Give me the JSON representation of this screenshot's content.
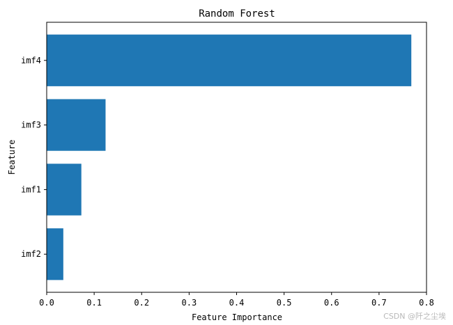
{
  "chart_data": {
    "type": "bar",
    "orientation": "horizontal",
    "title": "Random Forest",
    "xlabel": "Feature Importance",
    "ylabel": "Feature",
    "categories": [
      "imf2",
      "imf1",
      "imf3",
      "imf4"
    ],
    "values": [
      0.035,
      0.073,
      0.124,
      0.768
    ],
    "xlim": [
      0,
      0.8
    ],
    "xticks": [
      "0.0",
      "0.1",
      "0.2",
      "0.3",
      "0.4",
      "0.5",
      "0.6",
      "0.7",
      "0.8"
    ],
    "grid": false,
    "bar_color": "#1f77b4"
  },
  "watermark": "CSDN @阡之尘埃"
}
